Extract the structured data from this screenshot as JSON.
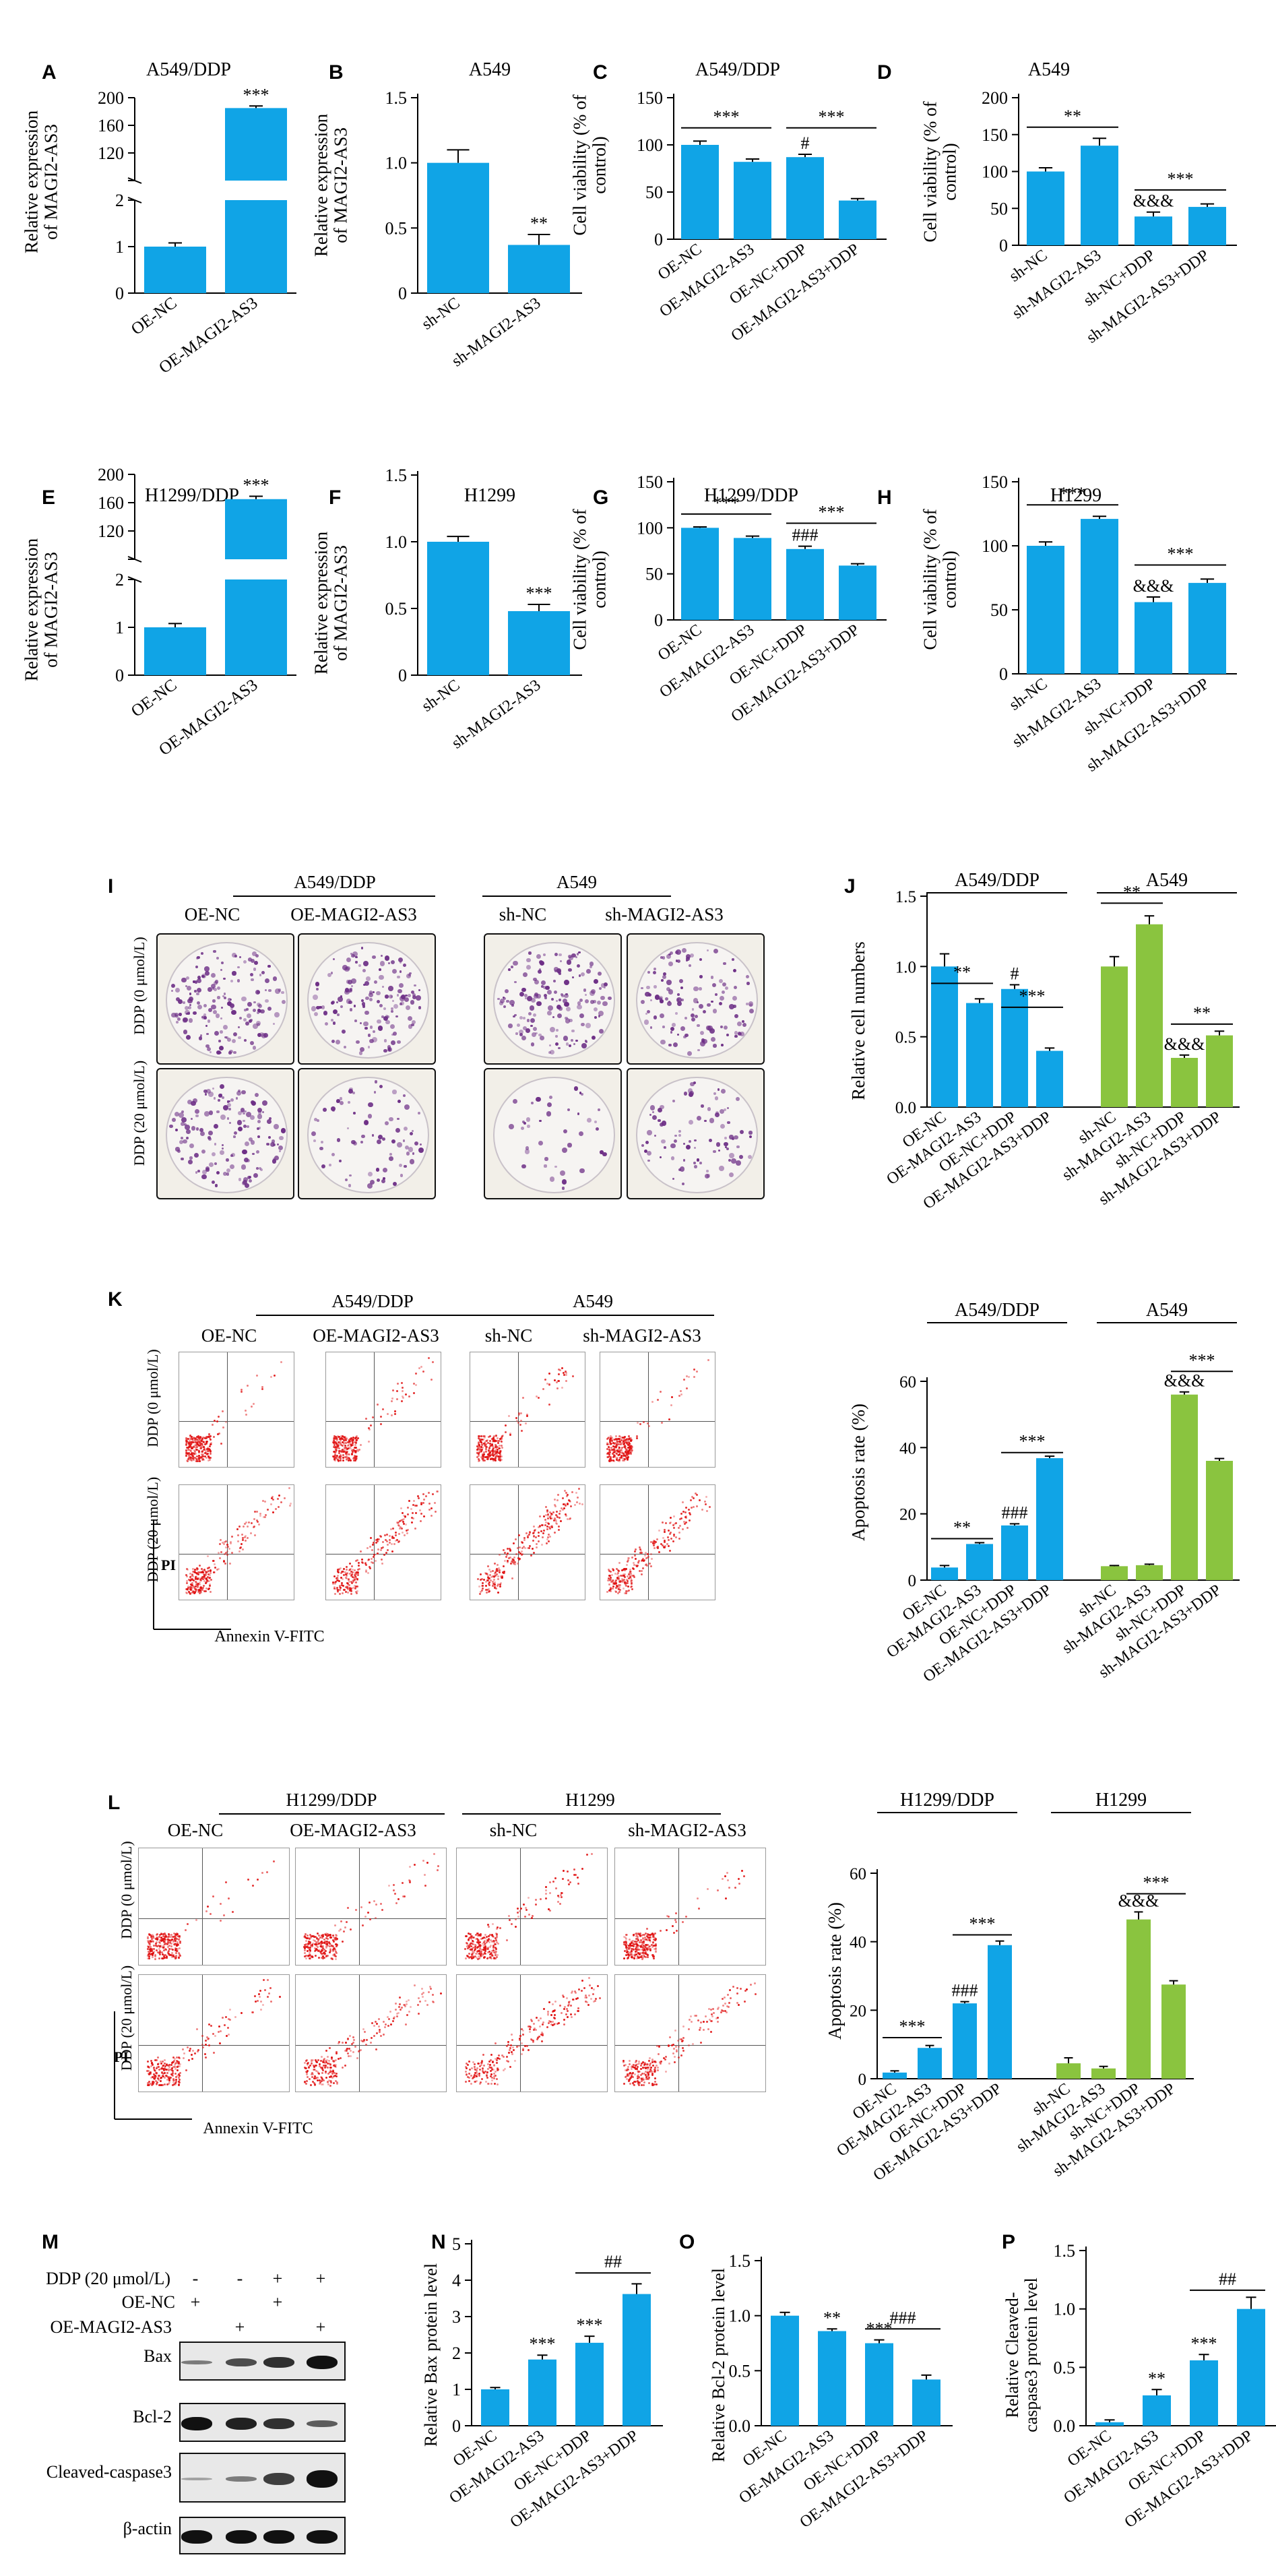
{
  "colors": {
    "blue": "#10a4e6",
    "green": "#8ac43f",
    "red": "#e01010",
    "purple": "#6d2f86"
  },
  "panels": {
    "A": {
      "letter": "A",
      "title": "A549/DDP",
      "ylabel": [
        "Relative expression",
        "of MAGI2-AS3"
      ]
    },
    "B": {
      "letter": "B",
      "title": "A549",
      "ylabel": [
        "Relative expression",
        "of MAGI2-AS3"
      ]
    },
    "C": {
      "letter": "C",
      "title": "A549/DDP",
      "ylabel": [
        "Cell viability (% of",
        "control)"
      ]
    },
    "D": {
      "letter": "D",
      "title": "A549",
      "ylabel": [
        "Cell viability (% of",
        "control)"
      ]
    },
    "E": {
      "letter": "E",
      "title": "H1299/DDP",
      "ylabel": [
        "Relative expression",
        "of MAGI2-AS3"
      ]
    },
    "F": {
      "letter": "F",
      "title": "H1299",
      "ylabel": [
        "Relative expression",
        "of MAGI2-AS3"
      ]
    },
    "G": {
      "letter": "G",
      "title": "H1299/DDP",
      "ylabel": [
        "Cell viability (% of",
        "control)"
      ]
    },
    "H": {
      "letter": "H",
      "title": "H1299",
      "ylabel": [
        "Cell viability (% of",
        "control)"
      ]
    },
    "I": {
      "letter": "I",
      "group1": "A549/DDP",
      "group2": "A549",
      "cols": [
        "OE-NC",
        "OE-MAGI2-AS3",
        "sh-NC",
        "sh-MAGI2-AS3"
      ],
      "rows": [
        "DDP (0 μmol/L)",
        "DDP (20 μmol/L)"
      ]
    },
    "J": {
      "letter": "J",
      "group1": "A549/DDP",
      "group2": "A549",
      "ylabel": [
        "Relative cell numbers"
      ]
    },
    "K": {
      "letter": "K",
      "group1": "A549/DDP",
      "group2": "A549",
      "cols": [
        "OE-NC",
        "OE-MAGI2-AS3",
        "sh-NC",
        "sh-MAGI2-AS3"
      ],
      "rows": [
        "DDP (0 μmol/L)",
        "DDP (20 μmol/L)"
      ],
      "yaxis": "PI",
      "xaxis": "Annexin V-FITC",
      "chart_title1": "A549/DDP",
      "chart_title2": "A549",
      "ylabel": [
        "Apoptosis rate (%)"
      ]
    },
    "L": {
      "letter": "L",
      "group1": "H1299/DDP",
      "group2": "H1299",
      "cols": [
        "OE-NC",
        "OE-MAGI2-AS3",
        "sh-NC",
        "sh-MAGI2-AS3"
      ],
      "rows": [
        "DDP (0 μmol/L)",
        "DDP (20 μmol/L)"
      ],
      "yaxis": "PI",
      "xaxis": "Annexin V-FITC",
      "chart_title1": "H1299/DDP",
      "chart_title2": "H1299",
      "ylabel": [
        "Apoptosis rate (%)"
      ]
    },
    "M": {
      "letter": "M",
      "conditions": [
        {
          "label": "DDP (20 μmol/L)",
          "marks": [
            "-",
            "-",
            "+",
            "+"
          ]
        },
        {
          "label": "OE-NC",
          "marks": [
            "+",
            "",
            "+",
            ""
          ]
        },
        {
          "label": "OE-MAGI2-AS3",
          "marks": [
            "",
            "+",
            "",
            "+"
          ]
        }
      ],
      "blots": [
        "Bax",
        "Bcl-2",
        "Cleaved-caspase3",
        "β-actin"
      ]
    },
    "N": {
      "letter": "N",
      "ylabel": [
        "Relative Bax protein level"
      ]
    },
    "O": {
      "letter": "O",
      "ylabel": [
        "Relative Bcl-2 protein level"
      ]
    },
    "P": {
      "letter": "P",
      "ylabel": [
        "Relative Cleaved-",
        "caspase3 protein level"
      ]
    }
  },
  "chart_data": [
    {
      "id": "A",
      "type": "bar",
      "categories": [
        "OE-NC",
        "OE-MAGI2-AS3"
      ],
      "values": [
        1,
        185
      ],
      "errors": [
        0.08,
        3
      ],
      "yaxis_break": {
        "lower": [
          0,
          2
        ],
        "upper": [
          80,
          200
        ]
      },
      "ticks_lower": [
        0,
        1,
        2
      ],
      "ticks_upper": [
        80,
        120,
        160,
        200
      ],
      "tick_labels_upper": [
        "",
        "120",
        "160",
        "200"
      ],
      "annotations": [
        {
          "bar": 1,
          "text": "***"
        }
      ]
    },
    {
      "id": "B",
      "type": "bar",
      "categories": [
        "sh-NC",
        "sh-MAGI2-AS3"
      ],
      "values": [
        1.0,
        0.37
      ],
      "errors": [
        0.1,
        0.08
      ],
      "ylim": [
        0,
        1.5
      ],
      "yticks": [
        0,
        0.5,
        1.0,
        1.5
      ],
      "yticklabels": [
        "0",
        "0.5",
        "1.0",
        "1.5"
      ],
      "annotations": [
        {
          "bar": 1,
          "text": "**"
        }
      ]
    },
    {
      "id": "C",
      "type": "bar",
      "categories": [
        "OE-NC",
        "OE-MAGI2-AS3",
        "OE-NC+DDP",
        "OE-MAGI2-AS3+DDP"
      ],
      "values": [
        100,
        82,
        87,
        41
      ],
      "errors": [
        4,
        3,
        3,
        2
      ],
      "ylim": [
        0,
        150
      ],
      "yticks": [
        0,
        50,
        100,
        150
      ],
      "yticklabels": [
        "0",
        "50",
        "100",
        "150"
      ],
      "annotations": [
        {
          "bar": 2,
          "text": "#"
        }
      ],
      "brackets": [
        {
          "from": 0,
          "to": 1,
          "level": 118,
          "text": "***"
        },
        {
          "from": 2,
          "to": 3,
          "level": 118,
          "text": "***"
        }
      ]
    },
    {
      "id": "D",
      "type": "bar",
      "categories": [
        "sh-NC",
        "sh-MAGI2-AS3",
        "sh-NC+DDP",
        "sh-MAGI2-AS3+DDP"
      ],
      "values": [
        100,
        135,
        39,
        52
      ],
      "errors": [
        5,
        10,
        6,
        4
      ],
      "ylim": [
        0,
        200
      ],
      "yticks": [
        0,
        50,
        100,
        150,
        200
      ],
      "yticklabels": [
        "0",
        "50",
        "100",
        "150",
        "200"
      ],
      "annotations": [
        {
          "bar": 2,
          "text": "&&&"
        }
      ],
      "brackets": [
        {
          "from": 0,
          "to": 1,
          "level": 160,
          "text": "**"
        },
        {
          "from": 2,
          "to": 3,
          "level": 75,
          "text": "***"
        }
      ]
    },
    {
      "id": "E",
      "type": "bar",
      "categories": [
        "OE-NC",
        "OE-MAGI2-AS3"
      ],
      "values": [
        1,
        165
      ],
      "errors": [
        0.08,
        4
      ],
      "yaxis_break": {
        "lower": [
          0,
          2
        ],
        "upper": [
          80,
          200
        ]
      },
      "ticks_lower": [
        0,
        1,
        2
      ],
      "ticks_upper": [
        80,
        120,
        160,
        200
      ],
      "tick_labels_upper": [
        "",
        "120",
        "160",
        "200"
      ],
      "annotations": [
        {
          "bar": 1,
          "text": "***"
        }
      ]
    },
    {
      "id": "F",
      "type": "bar",
      "categories": [
        "sh-NC",
        "sh-MAGI2-AS3"
      ],
      "values": [
        1.0,
        0.48
      ],
      "errors": [
        0.04,
        0.05
      ],
      "ylim": [
        0,
        1.5
      ],
      "yticks": [
        0,
        0.5,
        1.0,
        1.5
      ],
      "yticklabels": [
        "0",
        "0.5",
        "1.0",
        "1.5"
      ],
      "annotations": [
        {
          "bar": 1,
          "text": "***"
        }
      ]
    },
    {
      "id": "G",
      "type": "bar",
      "categories": [
        "OE-NC",
        "OE-MAGI2-AS3",
        "OE-NC+DDP",
        "OE-MAGI2-AS3+DDP"
      ],
      "values": [
        100,
        89,
        77,
        59
      ],
      "errors": [
        1,
        2,
        3,
        2
      ],
      "ylim": [
        0,
        150
      ],
      "yticks": [
        0,
        50,
        100,
        150
      ],
      "yticklabels": [
        "0",
        "50",
        "100",
        "150"
      ],
      "annotations": [
        {
          "bar": 2,
          "text": "###"
        }
      ],
      "brackets": [
        {
          "from": 0,
          "to": 1,
          "level": 115,
          "text": "***"
        },
        {
          "from": 2,
          "to": 3,
          "level": 105,
          "text": "***"
        }
      ]
    },
    {
      "id": "H",
      "type": "bar",
      "categories": [
        "sh-NC",
        "sh-MAGI2-AS3",
        "sh-NC+DDP",
        "sh-MAGI2-AS3+DDP"
      ],
      "values": [
        100,
        121,
        56,
        71
      ],
      "errors": [
        3,
        2,
        4,
        3
      ],
      "ylim": [
        0,
        150
      ],
      "yticks": [
        0,
        50,
        100,
        150
      ],
      "yticklabels": [
        "0",
        "50",
        "100",
        "150"
      ],
      "annotations": [
        {
          "bar": 2,
          "text": "&&&"
        }
      ],
      "brackets": [
        {
          "from": 0,
          "to": 1,
          "level": 132,
          "text": "***"
        },
        {
          "from": 2,
          "to": 3,
          "level": 85,
          "text": "***"
        }
      ]
    },
    {
      "id": "J",
      "type": "bar",
      "categories": [
        "OE-NC",
        "OE-MAGI2-AS3",
        "OE-NC+DDP",
        "OE-MAGI2-AS3+DDP",
        "sh-NC",
        "sh-MAGI2-AS3",
        "sh-NC+DDP",
        "sh-MAGI2-AS3+DDP"
      ],
      "values": [
        1.0,
        0.74,
        0.84,
        0.4,
        1.0,
        1.3,
        0.35,
        0.51
      ],
      "errors": [
        0.09,
        0.03,
        0.03,
        0.02,
        0.07,
        0.06,
        0.02,
        0.03
      ],
      "colors": [
        "blue",
        "blue",
        "blue",
        "blue",
        "green",
        "green",
        "green",
        "green"
      ],
      "ylim": [
        0,
        1.5
      ],
      "yticks": [
        0,
        0.5,
        1.0,
        1.5
      ],
      "yticklabels": [
        "0.0",
        "0.5",
        "1.0",
        "1.5"
      ],
      "annotations": [
        {
          "bar": 2,
          "text": "#"
        },
        {
          "bar": 6,
          "text": "&&&"
        }
      ],
      "brackets": [
        {
          "from": 0,
          "to": 1,
          "level": 0.88,
          "text": "**"
        },
        {
          "from": 2,
          "to": 3,
          "level": 0.71,
          "text": "***"
        },
        {
          "from": 4,
          "to": 5,
          "level": 1.45,
          "text": "**"
        },
        {
          "from": 6,
          "to": 7,
          "level": 0.59,
          "text": "**"
        }
      ],
      "groups": [
        {
          "from": 0,
          "to": 3,
          "text": "A549/DDP"
        },
        {
          "from": 4,
          "to": 7,
          "text": "A549"
        }
      ]
    },
    {
      "id": "K",
      "type": "bar",
      "categories": [
        "OE-NC",
        "OE-MAGI2-AS3",
        "OE-NC+DDP",
        "OE-MAGI2-AS3+DDP",
        "sh-NC",
        "sh-MAGI2-AS3",
        "sh-NC+DDP",
        "sh-MAGI2-AS3+DDP"
      ],
      "values": [
        3.8,
        10.9,
        16.5,
        36.8,
        4.2,
        4.5,
        56,
        36
      ],
      "errors": [
        0.6,
        0.4,
        0.5,
        0.6,
        0.2,
        0.3,
        0.8,
        0.7
      ],
      "colors": [
        "blue",
        "blue",
        "blue",
        "blue",
        "green",
        "green",
        "green",
        "green"
      ],
      "ylim": [
        0,
        60
      ],
      "yticks": [
        0,
        20,
        40,
        60
      ],
      "yticklabels": [
        "0",
        "20",
        "40",
        "60"
      ],
      "annotations": [
        {
          "bar": 2,
          "text": "###"
        },
        {
          "bar": 6,
          "text": "&&&"
        }
      ],
      "brackets": [
        {
          "from": 0,
          "to": 1,
          "level": 12.5,
          "text": "**"
        },
        {
          "from": 2,
          "to": 3,
          "level": 38.5,
          "text": "***"
        },
        {
          "from": 6,
          "to": 7,
          "level": 63,
          "text": "***"
        }
      ],
      "groups": [
        {
          "from": 0,
          "to": 3,
          "text": "A549/DDP"
        },
        {
          "from": 4,
          "to": 7,
          "text": "A549"
        }
      ]
    },
    {
      "id": "L",
      "type": "bar",
      "categories": [
        "OE-NC",
        "OE-MAGI2-AS3",
        "OE-NC+DDP",
        "OE-MAGI2-AS3+DDP",
        "sh-NC",
        "sh-MAGI2-AS3",
        "sh-NC+DDP",
        "sh-MAGI2-AS3+DDP"
      ],
      "values": [
        1.8,
        9,
        22,
        39,
        4.5,
        3,
        46.5,
        27.5
      ],
      "errors": [
        0.5,
        0.7,
        0.5,
        1.2,
        1.6,
        0.6,
        2.2,
        1.1
      ],
      "colors": [
        "blue",
        "blue",
        "blue",
        "blue",
        "green",
        "green",
        "green",
        "green"
      ],
      "ylim": [
        0,
        60
      ],
      "yticks": [
        0,
        20,
        40,
        60
      ],
      "yticklabels": [
        "0",
        "20",
        "40",
        "60"
      ],
      "annotations": [
        {
          "bar": 2,
          "text": "###"
        },
        {
          "bar": 6,
          "text": "&&&"
        }
      ],
      "brackets": [
        {
          "from": 0,
          "to": 1,
          "level": 12,
          "text": "***"
        },
        {
          "from": 2,
          "to": 3,
          "level": 42,
          "text": "***"
        },
        {
          "from": 6,
          "to": 7,
          "level": 54,
          "text": "***"
        }
      ],
      "groups": [
        {
          "from": 0,
          "to": 3,
          "text": "H1299/DDP"
        },
        {
          "from": 4,
          "to": 7,
          "text": "H1299"
        }
      ]
    },
    {
      "id": "N",
      "type": "bar",
      "categories": [
        "OE-NC",
        "OE-MAGI2-AS3",
        "OE-NC+DDP",
        "OE-MAGI2-AS3+DDP"
      ],
      "values": [
        1.0,
        1.82,
        2.28,
        3.62
      ],
      "errors": [
        0.05,
        0.12,
        0.18,
        0.28
      ],
      "ylim": [
        0,
        5
      ],
      "yticks": [
        0,
        1,
        2,
        3,
        4,
        5
      ],
      "yticklabels": [
        "0",
        "1",
        "2",
        "3",
        "4",
        "5"
      ],
      "annotations": [
        {
          "bar": 1,
          "text": "***"
        },
        {
          "bar": 2,
          "text": "***"
        }
      ],
      "brackets": [
        {
          "from": 2,
          "to": 3,
          "level": 4.2,
          "text": "##"
        }
      ]
    },
    {
      "id": "O",
      "type": "bar",
      "categories": [
        "OE-NC",
        "OE-MAGI2-AS3",
        "OE-NC+DDP",
        "OE-MAGI2-AS3+DDP"
      ],
      "values": [
        1.0,
        0.86,
        0.75,
        0.42
      ],
      "errors": [
        0.03,
        0.02,
        0.03,
        0.04
      ],
      "ylim": [
        0,
        1.5
      ],
      "yticks": [
        0,
        0.5,
        1.0,
        1.5
      ],
      "yticklabels": [
        "0.0",
        "0.5",
        "1.0",
        "1.5"
      ],
      "annotations": [
        {
          "bar": 1,
          "text": "**"
        },
        {
          "bar": 2,
          "text": "***"
        }
      ],
      "brackets": [
        {
          "from": 2,
          "to": 3,
          "level": 0.88,
          "text": "###"
        }
      ]
    },
    {
      "id": "P",
      "type": "bar",
      "categories": [
        "OE-NC",
        "OE-MAGI2-AS3",
        "OE-NC+DDP",
        "OE-MAGI2-AS3+DDP"
      ],
      "values": [
        0.03,
        0.26,
        0.56,
        1.0
      ],
      "errors": [
        0.02,
        0.05,
        0.05,
        0.1
      ],
      "ylim": [
        0,
        1.5
      ],
      "yticks": [
        0,
        0.5,
        1.0,
        1.5
      ],
      "yticklabels": [
        "0.0",
        "0.5",
        "1.0",
        "1.5"
      ],
      "annotations": [
        {
          "bar": 1,
          "text": "**"
        },
        {
          "bar": 2,
          "text": "***"
        }
      ],
      "brackets": [
        {
          "from": 2,
          "to": 3,
          "level": 1.16,
          "text": "##"
        }
      ]
    }
  ]
}
